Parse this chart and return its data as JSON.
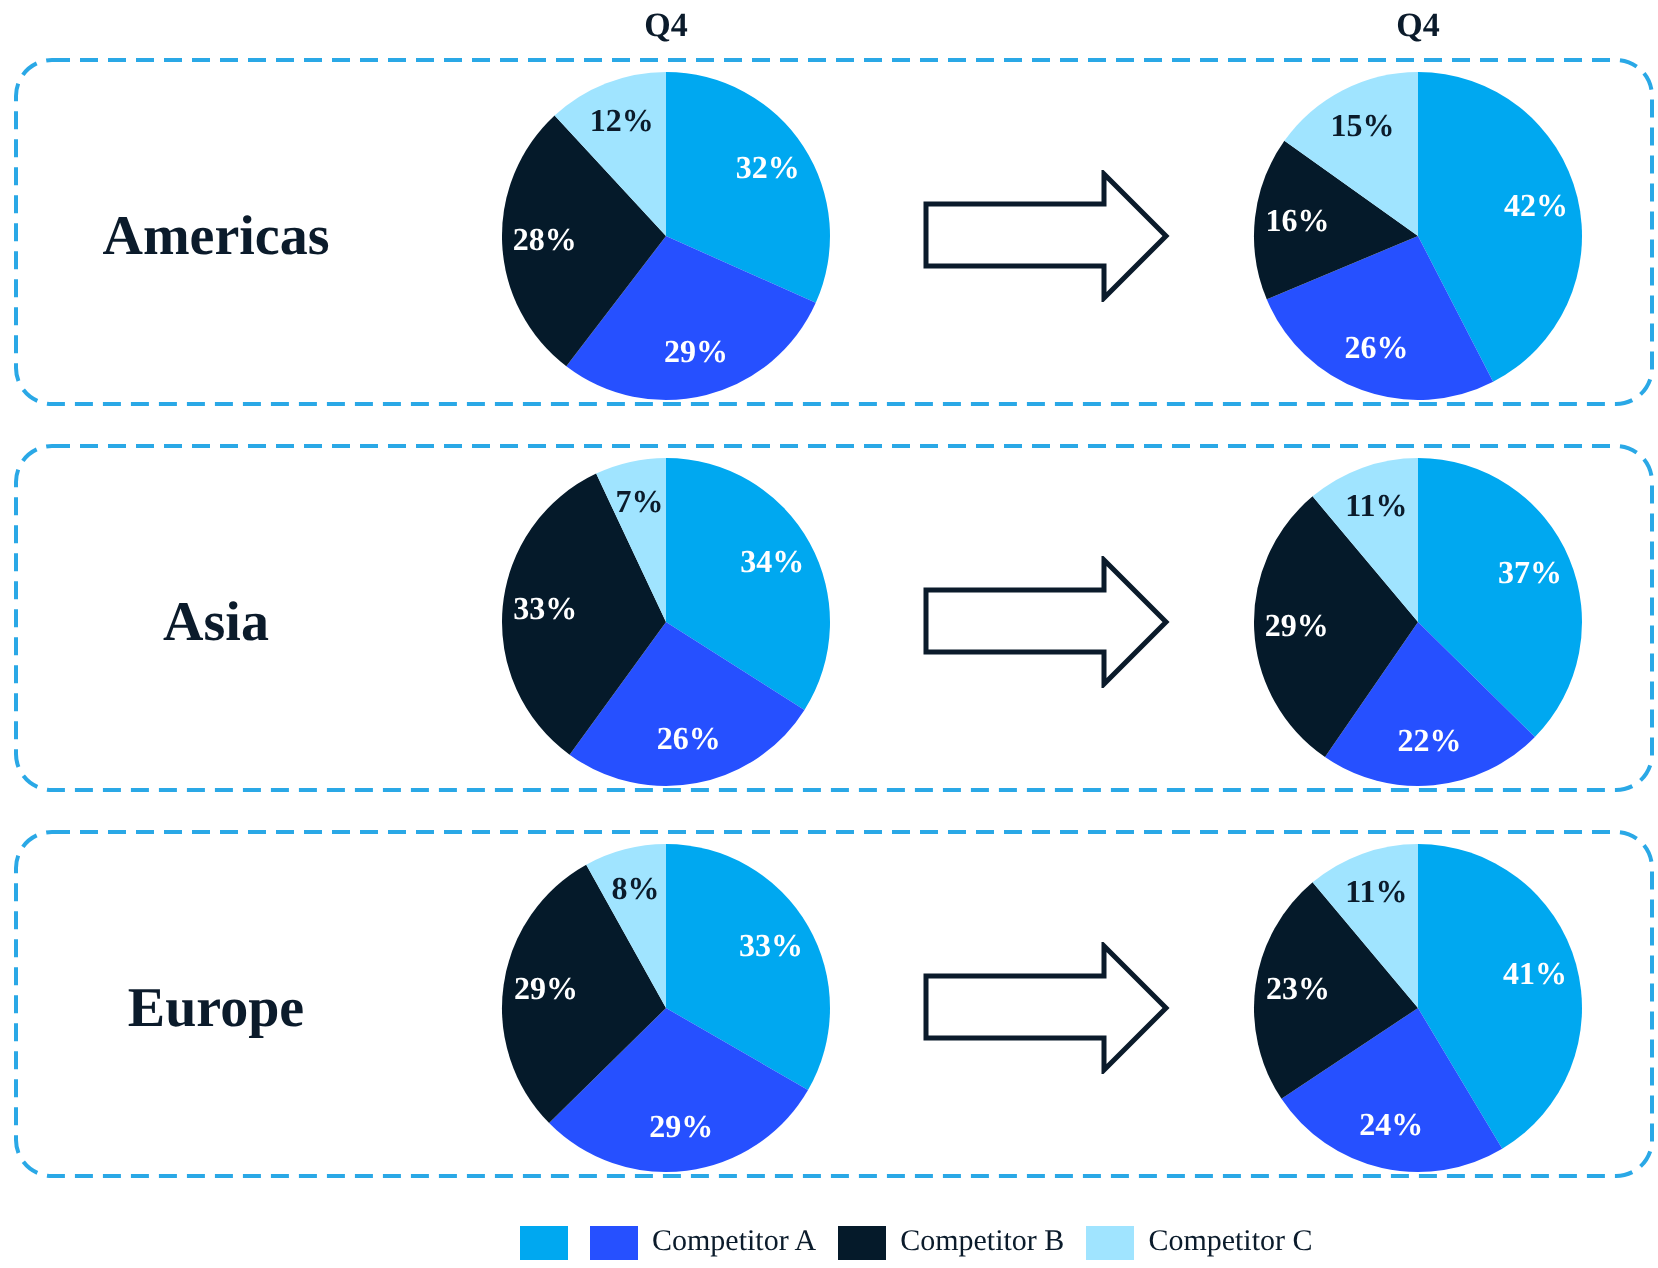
{
  "chart_data": [
    {
      "type": "pie",
      "title": "Q4",
      "annotations": [
        "Americas"
      ],
      "categories": [
        null,
        null,
        null,
        null
      ],
      "values": [
        32,
        29,
        28,
        12
      ],
      "colors": [
        "#00a8f0",
        "#2650ff",
        "#051a2a",
        "#a0e4ff"
      ],
      "value_labels": [
        "32%",
        "29%",
        "28%",
        "12%"
      ]
    },
    {
      "type": "pie",
      "title": "Q4",
      "categories": [
        null,
        null,
        null,
        null
      ],
      "values": [
        42,
        26,
        16,
        15
      ],
      "colors": [
        "#00a8f0",
        "#2650ff",
        "#051a2a",
        "#a0e4ff"
      ],
      "value_labels": [
        "42%",
        "26%",
        "16%",
        "15%"
      ]
    },
    {
      "type": "pie",
      "annotations": [
        "Asia"
      ],
      "categories": [
        null,
        null,
        null,
        null
      ],
      "values": [
        34,
        26,
        33,
        7
      ],
      "colors": [
        "#00a8f0",
        "#2650ff",
        "#051a2a",
        "#a0e4ff"
      ],
      "value_labels": [
        "34%",
        "26%",
        "33%",
        "7%"
      ]
    },
    {
      "type": "pie",
      "categories": [
        null,
        null,
        null,
        null
      ],
      "values": [
        37,
        22,
        29,
        11
      ],
      "colors": [
        "#00a8f0",
        "#2650ff",
        "#051a2a",
        "#a0e4ff"
      ],
      "value_labels": [
        "37%",
        "22%",
        "29%",
        "11%"
      ]
    },
    {
      "type": "pie",
      "annotations": [
        "Europe"
      ],
      "categories": [
        null,
        null,
        null,
        null
      ],
      "values": [
        33,
        29,
        29,
        8
      ],
      "colors": [
        "#00a8f0",
        "#2650ff",
        "#051a2a",
        "#a0e4ff"
      ],
      "value_labels": [
        "33%",
        "29%",
        "29%",
        "8%"
      ]
    },
    {
      "type": "pie",
      "legend": "bottom",
      "categories": [
        null,
        "Competitor A",
        "Competitor B",
        "Competitor C"
      ],
      "values": [
        41,
        24,
        23,
        11
      ],
      "colors": [
        "#00a8f0",
        "#2650ff",
        "#051a2a",
        "#a0e4ff"
      ],
      "value_labels": [
        "41%",
        "24%",
        "23%",
        "11%"
      ]
    }
  ]
}
